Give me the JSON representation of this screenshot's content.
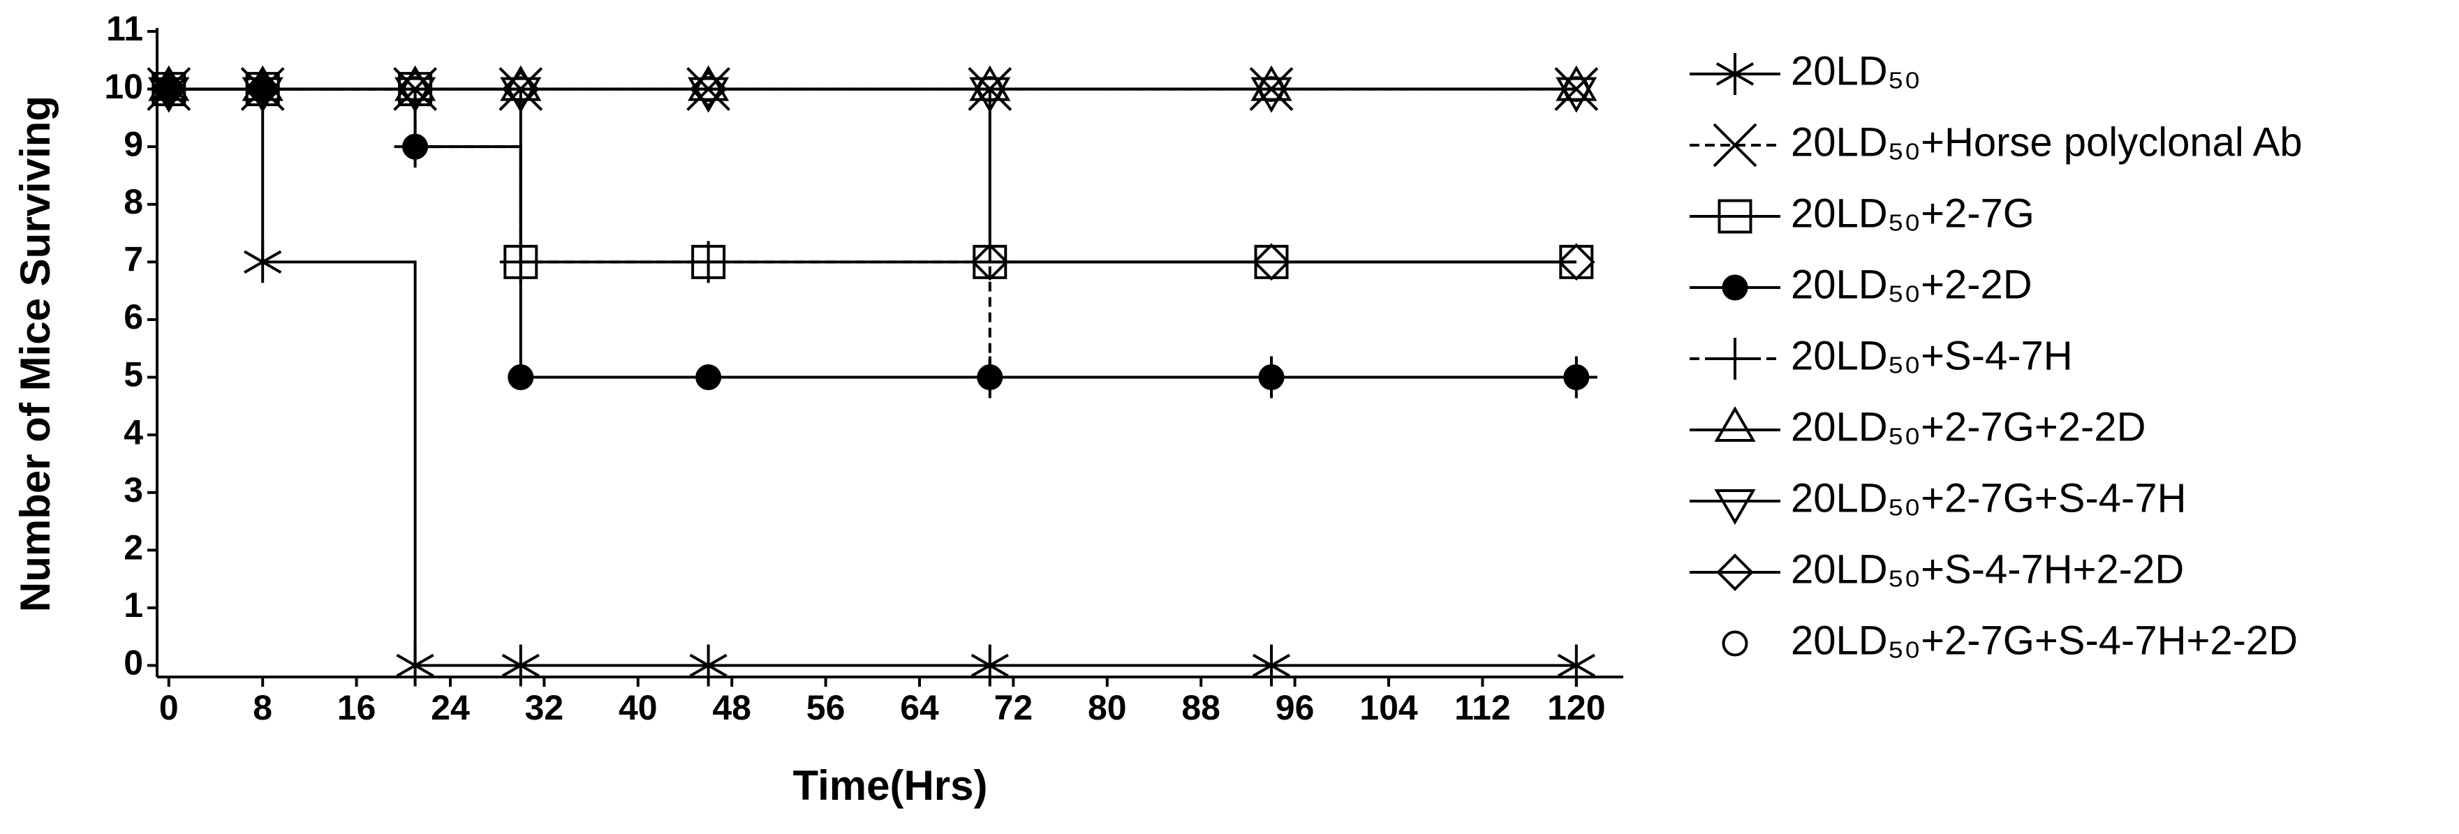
{
  "chart_data": {
    "type": "step",
    "x_label": "Time(Hrs)",
    "y_label": "Number of Mice Surviving",
    "x": [
      0,
      8,
      21,
      30,
      46,
      70,
      94,
      120
    ],
    "series": [
      {
        "name": "20LD₅₀",
        "color": "#000000",
        "marker": "asterisk",
        "line_style": "solid",
        "values": [
          10,
          7,
          0,
          0,
          0,
          0,
          0,
          0
        ]
      },
      {
        "name": "20LD₅₀+Horse polyclonal Ab",
        "color": "#000000",
        "marker": "x",
        "line_style": "dash",
        "values": [
          10,
          10,
          10,
          10,
          10,
          10,
          10,
          10
        ]
      },
      {
        "name": "20LD₅₀+2-7G",
        "color": "#000000",
        "marker": "square",
        "line_style": "solid",
        "values": [
          10,
          10,
          10,
          7,
          7,
          7,
          7,
          7
        ]
      },
      {
        "name": "20LD₅₀+2-2D",
        "color": "#000000",
        "marker": "circle-filled",
        "line_style": "solid",
        "values": [
          10,
          10,
          9,
          5,
          5,
          5,
          5,
          5
        ]
      },
      {
        "name": "20LD₅₀+S-4-7H",
        "color": "#000000",
        "marker": "plus",
        "line_style": "dash",
        "values": [
          10,
          10,
          9,
          7,
          7,
          5,
          5,
          5
        ]
      },
      {
        "name": "20LD₅₀+2-7G+2-2D",
        "color": "#000000",
        "marker": "triangle",
        "line_style": "solid",
        "values": [
          10,
          10,
          10,
          10,
          10,
          10,
          10,
          10
        ]
      },
      {
        "name": "20LD₅₀+2-7G+S-4-7H",
        "color": "#000000",
        "marker": "triangle-down",
        "line_style": "solid",
        "values": [
          10,
          10,
          10,
          10,
          10,
          10,
          10,
          10
        ]
      },
      {
        "name": "20LD₅₀+S-4-7H+2-2D",
        "color": "#000000",
        "marker": "diamond",
        "line_style": "solid",
        "values": [
          10,
          10,
          10,
          10,
          10,
          7,
          7,
          7
        ]
      },
      {
        "name": "20LD₅₀+2-7G+S-4-7H+2-2D",
        "color": "#000000",
        "marker": "circle",
        "line_style": "none",
        "values": [
          10,
          10,
          10,
          10,
          10,
          10,
          10,
          10
        ]
      }
    ],
    "xlim": [
      -1,
      124
    ],
    "ylim": [
      -0.2,
      11
    ],
    "xticks": [
      0,
      8,
      16,
      24,
      32,
      40,
      48,
      56,
      64,
      72,
      80,
      88,
      96,
      104,
      112,
      120
    ],
    "yticks": [
      0,
      1,
      2,
      3,
      4,
      5,
      6,
      7,
      8,
      9,
      10,
      11
    ],
    "grid": false,
    "legend": "right"
  }
}
